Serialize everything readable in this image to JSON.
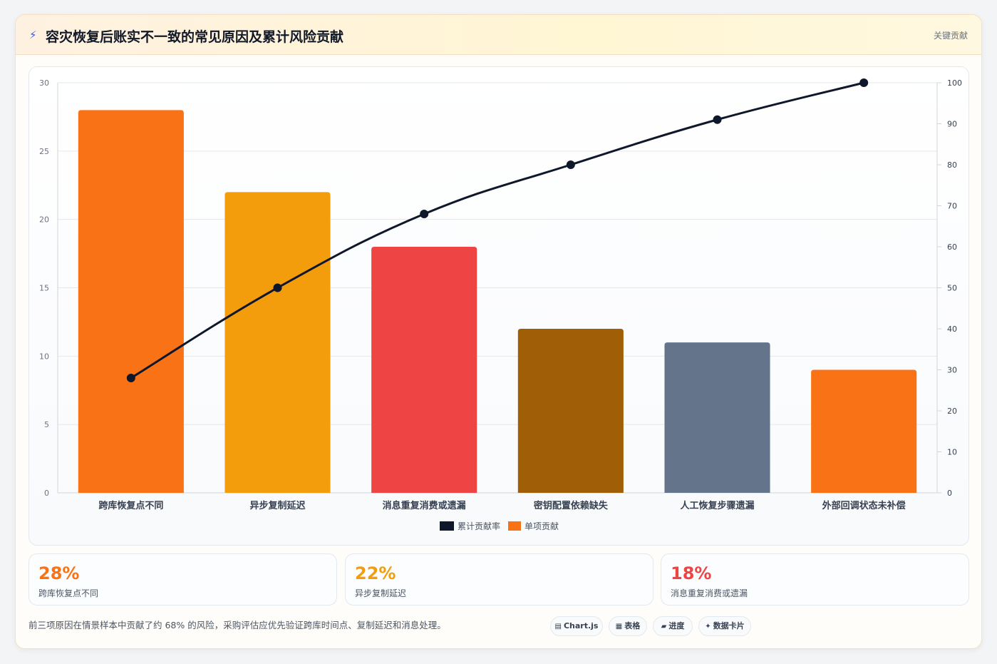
{
  "header": {
    "icon": "lightning-icon",
    "title": "容灾恢复后账实不一致的常见原因及累计风险贡献",
    "tag": "关键贡献"
  },
  "chart_data": {
    "type": "bar",
    "categories": [
      "跨库恢复点不同",
      "异步复制延迟",
      "消息重复消费或遗漏",
      "密钥配置依赖缺失",
      "人工恢复步骤遗漏",
      "外部回调状态未补偿"
    ],
    "series": [
      {
        "name": "累计贡献率",
        "type": "line",
        "axis": "right",
        "color": "#0f172a",
        "values": [
          28,
          50,
          68,
          80,
          91,
          100
        ]
      },
      {
        "name": "单项贡献",
        "type": "bar",
        "axis": "left",
        "color": "#f97316",
        "values": [
          28,
          22,
          18,
          12,
          11,
          9
        ]
      }
    ],
    "bar_colors": [
      "#f97316",
      "#f39c0c",
      "#ef4444",
      "#a05e06",
      "#64748b",
      "#f97316"
    ],
    "ylim_left": [
      0,
      30
    ],
    "left_ticks": [
      0,
      5,
      10,
      15,
      20,
      25,
      30
    ],
    "ylim_right": [
      0,
      100
    ],
    "right_ticks": [
      0,
      10,
      20,
      30,
      40,
      50,
      60,
      70,
      80,
      90,
      100
    ],
    "grid": true,
    "legend_position": "bottom"
  },
  "stats": [
    {
      "value": "28%",
      "label": "跨库恢复点不同",
      "color": "#f97316"
    },
    {
      "value": "22%",
      "label": "异步复制延迟",
      "color": "#f39c0c"
    },
    {
      "value": "18%",
      "label": "消息重复消费或遗漏",
      "color": "#ef4444"
    }
  ],
  "note": "前三项原因在情景样本中贡献了约 68% 的风险，采购评估应优先验证跨库时间点、复制延迟和消息处理。",
  "pills": [
    {
      "icon": "chart-icon",
      "glyph": "▤",
      "label": "Chart.js"
    },
    {
      "icon": "table-icon",
      "glyph": "▦",
      "label": "表格"
    },
    {
      "icon": "progress-icon",
      "glyph": "▰",
      "label": "进度"
    },
    {
      "icon": "card-icon",
      "glyph": "✦",
      "label": "数据卡片"
    }
  ]
}
